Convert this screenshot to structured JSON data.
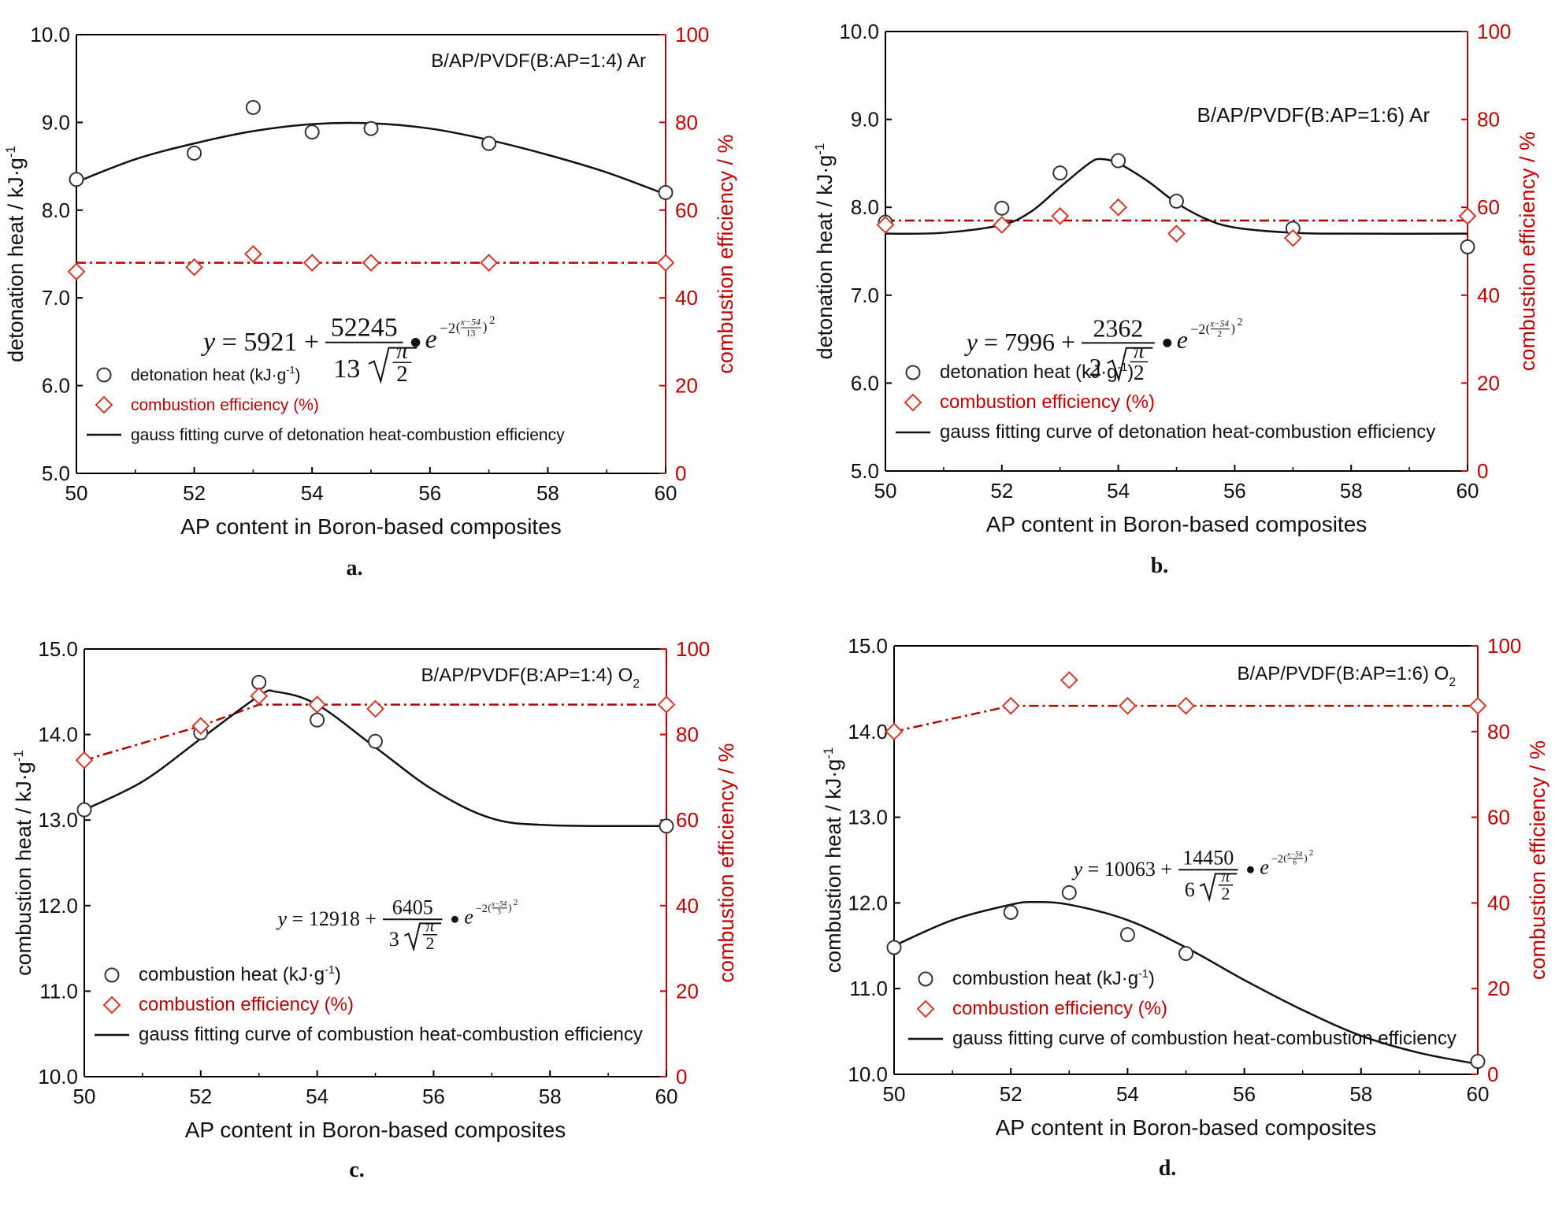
{
  "colors": {
    "axis_black": "#000000",
    "heat_series": "#333333",
    "efficiency_red": "#b00000",
    "marker_red": "#d0392b",
    "axis_red": "#c00000"
  },
  "chart_data": [
    {
      "type": "scatter",
      "panel_label": "a.",
      "title": "B/AP/PVDF(B:AP=1:4) Ar",
      "title_sub": "",
      "xlabel": "AP content in Boron-based composites",
      "ylabel": "detonation heat / kJ·g",
      "ylabel_sup": "-1",
      "y2label": "combustion efficiency / %",
      "xlim": [
        50,
        60
      ],
      "ylim": [
        5.0,
        10.0
      ],
      "y2lim": [
        0,
        100
      ],
      "xticks": [
        "50",
        "52",
        "54",
        "56",
        "58",
        "60"
      ],
      "yticks": [
        "5.0",
        "6.0",
        "7.0",
        "8.0",
        "9.0",
        "10.0"
      ],
      "y2ticks": [
        "0",
        "20",
        "40",
        "60",
        "80",
        "100"
      ],
      "legend": [
        {
          "marker": "circle",
          "label": "detonation heat (kJ·g",
          "sup": "-1",
          "suffix": ")"
        },
        {
          "marker": "diamond",
          "label": "combustion efficiency (%)",
          "sup": "",
          "suffix": ""
        },
        {
          "marker": "line",
          "label": "gauss fitting curve of detonation heat-combustion efficiency",
          "sup": "",
          "suffix": ""
        }
      ],
      "equation": {
        "y0": "5921",
        "A": "52245",
        "w": "13",
        "xc": "54"
      },
      "series": [
        {
          "name": "detonation heat (kJ·g-1)",
          "axis": "left",
          "marker": "circle",
          "x": [
            50,
            52,
            53,
            54,
            55,
            57,
            60
          ],
          "y": [
            8.35,
            8.65,
            9.17,
            8.89,
            8.93,
            8.76,
            8.2
          ]
        },
        {
          "name": "combustion efficiency (%)",
          "axis": "right",
          "marker": "diamond",
          "x": [
            50,
            52,
            53,
            54,
            55,
            57,
            60
          ],
          "y": [
            46,
            47,
            50,
            48,
            48,
            48,
            48
          ]
        }
      ],
      "fit_curve": [
        [
          50,
          8.32
        ],
        [
          51,
          8.58
        ],
        [
          52,
          8.76
        ],
        [
          53,
          8.9
        ],
        [
          54,
          8.98
        ],
        [
          55,
          8.99
        ],
        [
          56,
          8.93
        ],
        [
          57,
          8.8
        ],
        [
          58,
          8.63
        ],
        [
          59,
          8.43
        ],
        [
          60,
          8.18
        ]
      ],
      "efficiency_line": [
        [
          50,
          48
        ],
        [
          60,
          48
        ]
      ]
    },
    {
      "type": "scatter",
      "panel_label": "b.",
      "title": "B/AP/PVDF(B:AP=1:6) Ar",
      "title_sub": "",
      "xlabel": "AP content in Boron-based composites",
      "ylabel": "detonation heat / kJ·g",
      "ylabel_sup": "-1",
      "y2label": "combustion efficiency / %",
      "xlim": [
        50,
        60
      ],
      "ylim": [
        5.0,
        10.0
      ],
      "y2lim": [
        0,
        100
      ],
      "xticks": [
        "50",
        "52",
        "54",
        "56",
        "58",
        "60"
      ],
      "yticks": [
        "5.0",
        "6.0",
        "7.0",
        "8.0",
        "9.0",
        "10.0"
      ],
      "y2ticks": [
        "0",
        "20",
        "40",
        "60",
        "80",
        "100"
      ],
      "legend": [
        {
          "marker": "circle",
          "label": "detonation heat (kJ·g",
          "sup": "-1",
          "suffix": ")"
        },
        {
          "marker": "diamond",
          "label": "combustion efficiency (%)",
          "sup": "",
          "suffix": ""
        },
        {
          "marker": "line",
          "label": "gauss fitting curve of detonation heat-combustion efficiency",
          "sup": "",
          "suffix": ""
        }
      ],
      "equation": {
        "y0": "7996",
        "A": "2362",
        "w": "2",
        "xc": "54"
      },
      "series": [
        {
          "name": "detonation heat (kJ·g-1)",
          "axis": "left",
          "marker": "circle",
          "x": [
            50,
            52,
            53,
            54,
            55,
            57,
            60
          ],
          "y": [
            7.83,
            7.99,
            8.39,
            8.53,
            8.07,
            7.76,
            7.55
          ]
        },
        {
          "name": "combustion efficiency (%)",
          "axis": "right",
          "marker": "diamond",
          "x": [
            50,
            52,
            53,
            54,
            55,
            57,
            60
          ],
          "y": [
            56,
            56,
            58,
            60,
            54,
            53,
            58
          ]
        }
      ],
      "fit_curve": [
        [
          50,
          7.7
        ],
        [
          51,
          7.71
        ],
        [
          52,
          7.8
        ],
        [
          52.5,
          7.95
        ],
        [
          53,
          8.23
        ],
        [
          53.5,
          8.5
        ],
        [
          53.7,
          8.55
        ],
        [
          54,
          8.5
        ],
        [
          54.5,
          8.3
        ],
        [
          55,
          8.05
        ],
        [
          55.5,
          7.87
        ],
        [
          56,
          7.77
        ],
        [
          57,
          7.71
        ],
        [
          58,
          7.7
        ],
        [
          60,
          7.7
        ]
      ],
      "efficiency_line": [
        [
          50,
          57
        ],
        [
          60,
          57
        ]
      ]
    },
    {
      "type": "scatter",
      "panel_label": "c.",
      "title": "B/AP/PVDF(B:AP=1:4) O",
      "title_sub": "2",
      "xlabel": "AP content in Boron-based composites",
      "ylabel": "combustion heat / kJ·g",
      "ylabel_sup": "-1",
      "y2label": "combustion efficiency / %",
      "xlim": [
        50,
        60
      ],
      "ylim": [
        10.0,
        15.0
      ],
      "y2lim": [
        0,
        100
      ],
      "xticks": [
        "50",
        "52",
        "54",
        "56",
        "58",
        "60"
      ],
      "yticks": [
        "10.0",
        "11.0",
        "12.0",
        "13.0",
        "14.0",
        "15.0"
      ],
      "y2ticks": [
        "0",
        "20",
        "40",
        "60",
        "80",
        "100"
      ],
      "legend": [
        {
          "marker": "circle",
          "label": "combustion heat (kJ·g",
          "sup": "-1",
          "suffix": ")"
        },
        {
          "marker": "diamond",
          "label": "combustion efficiency (%)",
          "sup": "",
          "suffix": ""
        },
        {
          "marker": "line",
          "label": "gauss fitting curve of combustion heat-combustion efficiency",
          "sup": "",
          "suffix": ""
        }
      ],
      "equation": {
        "y0": "12918",
        "A": "6405",
        "w": "3",
        "xc": "54"
      },
      "series": [
        {
          "name": "combustion heat (kJ·g-1)",
          "axis": "left",
          "marker": "circle",
          "x": [
            50,
            52,
            53,
            54,
            55,
            60
          ],
          "y": [
            13.12,
            14.02,
            14.61,
            14.17,
            13.92,
            12.93
          ]
        },
        {
          "name": "combustion efficiency (%)",
          "axis": "right",
          "marker": "diamond",
          "x": [
            50,
            52,
            53,
            54,
            55,
            60
          ],
          "y": [
            74,
            82,
            89,
            87,
            86,
            87
          ]
        }
      ],
      "fit_curve": [
        [
          50,
          13.12
        ],
        [
          51,
          13.45
        ],
        [
          52,
          13.95
        ],
        [
          53,
          14.45
        ],
        [
          53.3,
          14.5
        ],
        [
          54,
          14.35
        ],
        [
          55,
          13.85
        ],
        [
          56,
          13.35
        ],
        [
          57,
          13.02
        ],
        [
          58,
          12.94
        ],
        [
          60,
          12.93
        ]
      ],
      "efficiency_line": [
        [
          50,
          74
        ],
        [
          52,
          82
        ],
        [
          53,
          87
        ],
        [
          60,
          87
        ]
      ]
    },
    {
      "type": "scatter",
      "panel_label": "d.",
      "title": "B/AP/PVDF(B:AP=1:6) O",
      "title_sub": "2",
      "xlabel": "AP content in Boron-based composites",
      "ylabel": "combustion heat / kJ·g",
      "ylabel_sup": "-1",
      "y2label": "combustion efficiency / %",
      "xlim": [
        50,
        60
      ],
      "ylim": [
        10.0,
        15.0
      ],
      "y2lim": [
        0,
        100
      ],
      "xticks": [
        "50",
        "52",
        "54",
        "56",
        "58",
        "60"
      ],
      "yticks": [
        "10.0",
        "11.0",
        "12.0",
        "13.0",
        "14.0",
        "15.0"
      ],
      "y2ticks": [
        "0",
        "20",
        "40",
        "60",
        "80",
        "100"
      ],
      "legend": [
        {
          "marker": "circle",
          "label": "combustion heat (kJ·g",
          "sup": "-1",
          "suffix": ")"
        },
        {
          "marker": "diamond",
          "label": "combustion efficiency (%)",
          "sup": "",
          "suffix": ""
        },
        {
          "marker": "line",
          "label": "gauss fitting curve of combustion heat-combustion efficiency",
          "sup": "",
          "suffix": ""
        }
      ],
      "equation": {
        "y0": "10063",
        "A": "14450",
        "w": "6",
        "xc": "54"
      },
      "series": [
        {
          "name": "combustion heat (kJ·g-1)",
          "axis": "left",
          "marker": "circle",
          "x": [
            50,
            52,
            53,
            54,
            55,
            60
          ],
          "y": [
            11.48,
            11.89,
            12.12,
            11.63,
            11.41,
            10.15
          ]
        },
        {
          "name": "combustion efficiency (%)",
          "axis": "right",
          "marker": "diamond",
          "x": [
            50,
            52,
            53,
            54,
            55,
            60
          ],
          "y": [
            80,
            86,
            92,
            86,
            86,
            86
          ]
        }
      ],
      "fit_curve": [
        [
          50,
          11.5
        ],
        [
          51,
          11.8
        ],
        [
          52,
          11.98
        ],
        [
          52.4,
          12.01
        ],
        [
          53,
          11.98
        ],
        [
          54,
          11.8
        ],
        [
          55,
          11.48
        ],
        [
          56,
          11.1
        ],
        [
          57,
          10.75
        ],
        [
          58,
          10.45
        ],
        [
          59,
          10.25
        ],
        [
          60,
          10.12
        ]
      ],
      "efficiency_line": [
        [
          50,
          80
        ],
        [
          52,
          86
        ],
        [
          60,
          86
        ]
      ]
    }
  ]
}
